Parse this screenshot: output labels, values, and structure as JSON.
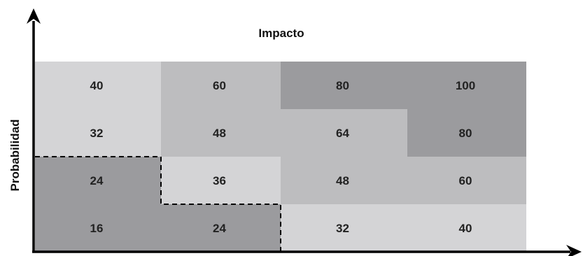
{
  "x_axis_label": "Impacto",
  "y_axis_label": "Probabilidad",
  "grid": [
    [
      "40",
      "60",
      "80",
      "100"
    ],
    [
      "32",
      "48",
      "64",
      "80"
    ],
    [
      "24",
      "36",
      "48",
      "60"
    ],
    [
      "16",
      "24",
      "32",
      "40"
    ]
  ],
  "shades": [
    [
      "light",
      "mid",
      "dark",
      "dark"
    ],
    [
      "light",
      "mid",
      "mid",
      "dark"
    ],
    [
      "dark",
      "light",
      "mid",
      "mid"
    ],
    [
      "dark",
      "dark",
      "light",
      "light"
    ]
  ],
  "colors": {
    "light": "#d4d4d6",
    "mid": "#bdbdbf",
    "dark": "#9b9b9e",
    "axis": "#000000",
    "dashed_boundary": "#000000"
  }
}
